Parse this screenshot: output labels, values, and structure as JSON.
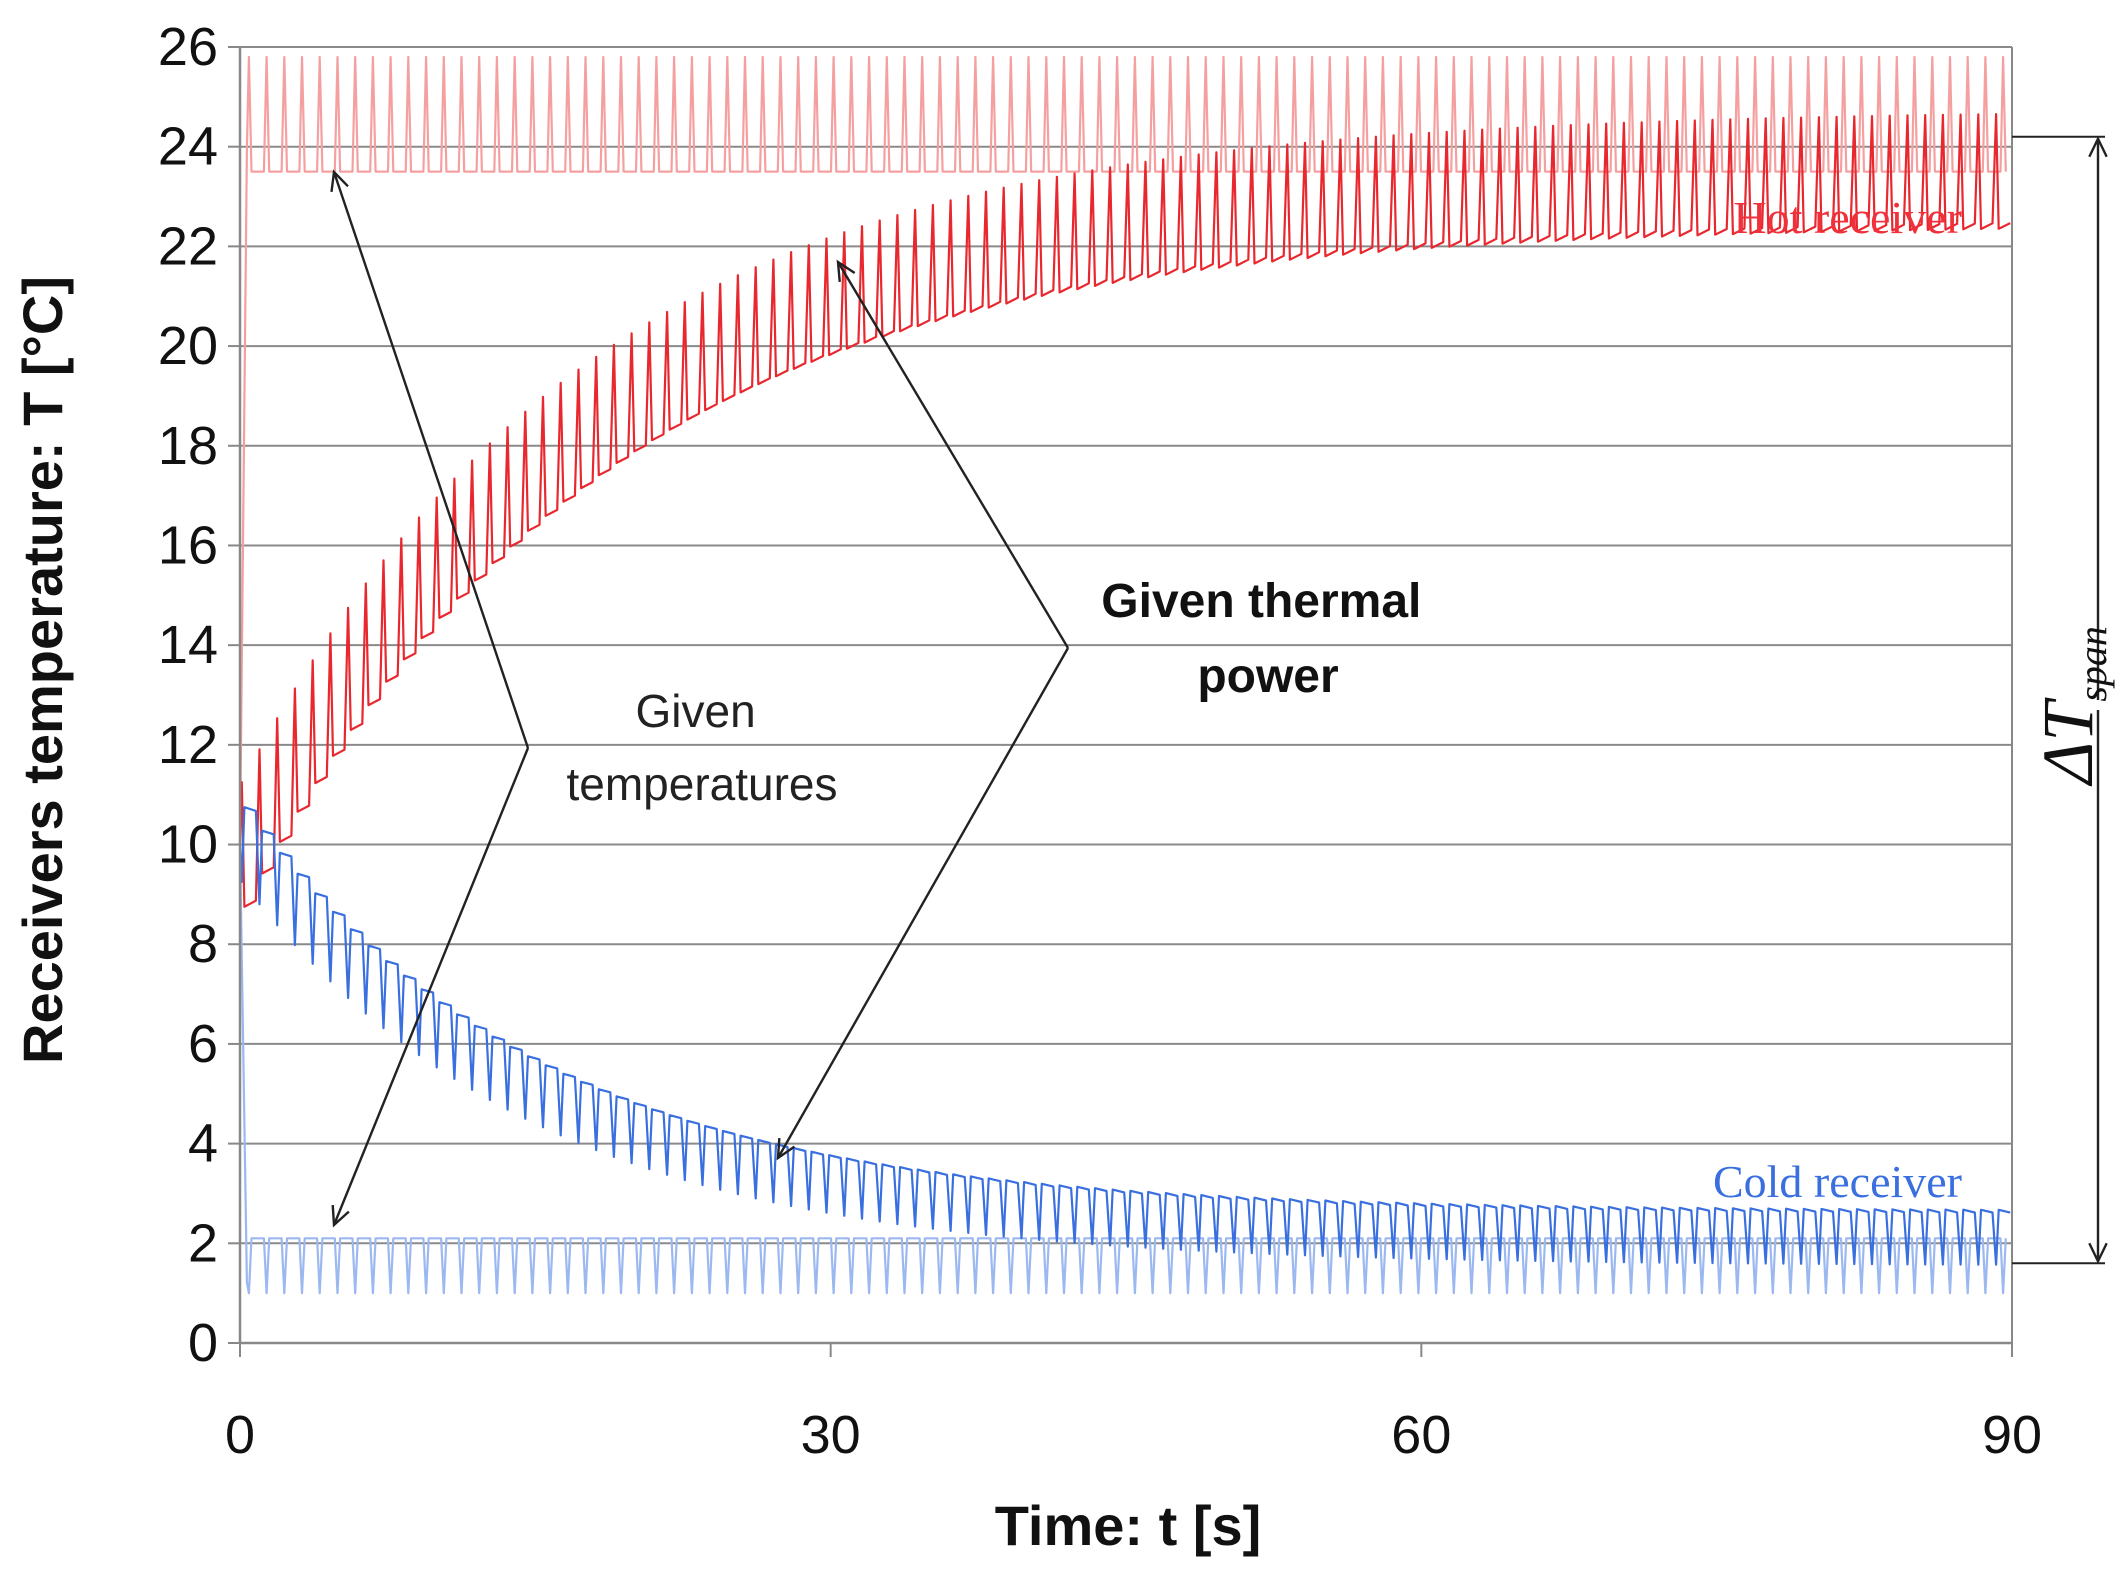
{
  "chart_data": {
    "type": "line",
    "xlabel": "Time: t [s]",
    "ylabel": "Receivers temperature: T [°C]",
    "xlim": [
      0,
      90
    ],
    "ylim": [
      0,
      26
    ],
    "xticks": [
      0,
      30,
      60,
      90
    ],
    "yticks": [
      0,
      2,
      4,
      6,
      8,
      10,
      12,
      14,
      16,
      18,
      20,
      22,
      24,
      26
    ],
    "grid": "horizontal",
    "cycle_period_s": 0.9,
    "series": [
      {
        "name": "Hot receiver - given temperatures",
        "color": "#f5a0a0",
        "model": "constant",
        "start": 10,
        "upper": 25.8,
        "lower": 23.5
      },
      {
        "name": "Hot receiver - given thermal power",
        "color": "#e8282e",
        "model": "exp",
        "start": 10,
        "final": 23.6,
        "tau": 18,
        "amp_start": 2.5,
        "amp_final": 2.3
      },
      {
        "name": "Cold receiver - given temperatures",
        "color": "#9bb8f0",
        "model": "constant",
        "start": 10,
        "upper": 2.1,
        "lower": 1.0
      },
      {
        "name": "Cold receiver - given thermal power",
        "color": "#3a6fe0",
        "model": "exp",
        "start": 10,
        "final": 2.1,
        "tau": 15,
        "amp_start": 1.5,
        "amp_final": 1.1
      }
    ],
    "annotations": {
      "hot_label": "Hot receiver",
      "cold_label": "Cold receiver",
      "given_temperatures": [
        "Given",
        "temperatures"
      ],
      "given_thermal_power": [
        "Given thermal",
        "power"
      ],
      "span_symbol": "ΔT",
      "span_subscript": "span",
      "span_range": [
        1.6,
        24.2
      ]
    }
  },
  "colors": {
    "hot": "#f0303a",
    "cold": "#3a6fe0",
    "grid": "#8a8a8a",
    "axis": "#888888"
  }
}
